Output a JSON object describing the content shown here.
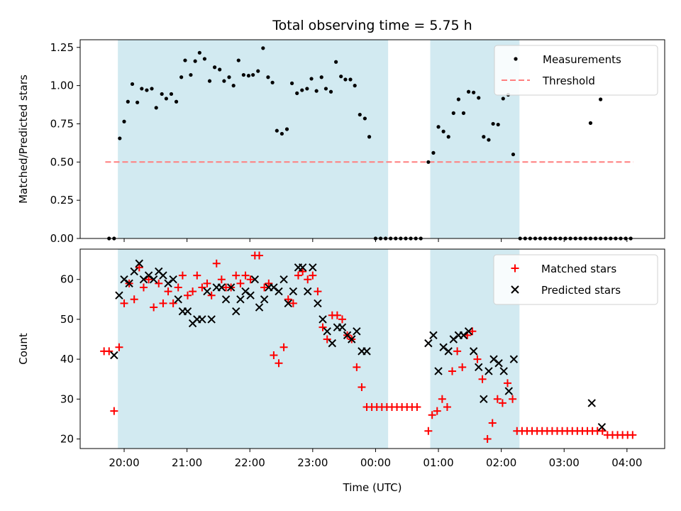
{
  "chart_data": {
    "type": "scatter",
    "title": "Total observing time = 5.75 h",
    "xlabel": "Time (UTC)",
    "xticks": [
      "20:00",
      "21:00",
      "22:00",
      "23:00",
      "00:00",
      "01:00",
      "02:00",
      "03:00",
      "04:00"
    ],
    "xlim_hours": [
      19.3,
      28.6
    ],
    "observing_windows_hours": [
      [
        19.9,
        24.2
      ],
      [
        24.87,
        26.29
      ]
    ],
    "colors": {
      "window": "#add8e6",
      "measurement": "#000000",
      "threshold": "#ff7f7f",
      "matched": "#ff0000",
      "predicted": "#000000"
    },
    "panels": [
      {
        "ylabel": "Matched/Predicted stars",
        "ylim": [
          0,
          1.3
        ],
        "yticks": [
          "0.00",
          "0.25",
          "0.50",
          "0.75",
          "1.00",
          "1.25"
        ],
        "legend": {
          "placement": "top-right",
          "measurements_label": "Measurements",
          "threshold_label": "Threshold"
        },
        "threshold": {
          "value": 0.5,
          "x_range_hours": [
            19.7,
            28.1
          ]
        },
        "measurements": [
          [
            19.76,
            0
          ],
          [
            19.84,
            0
          ],
          [
            19.93,
            0.655
          ],
          [
            20.0,
            0.765
          ],
          [
            20.06,
            0.895
          ],
          [
            20.13,
            1.01
          ],
          [
            20.21,
            0.89
          ],
          [
            20.28,
            0.98
          ],
          [
            20.36,
            0.97
          ],
          [
            20.44,
            0.98
          ],
          [
            20.51,
            0.855
          ],
          [
            20.6,
            0.945
          ],
          [
            20.67,
            0.915
          ],
          [
            20.75,
            0.945
          ],
          [
            20.83,
            0.895
          ],
          [
            20.91,
            1.055
          ],
          [
            20.97,
            1.165
          ],
          [
            21.06,
            1.07
          ],
          [
            21.13,
            1.16
          ],
          [
            21.2,
            1.215
          ],
          [
            21.28,
            1.175
          ],
          [
            21.36,
            1.03
          ],
          [
            21.44,
            1.12
          ],
          [
            21.52,
            1.105
          ],
          [
            21.59,
            1.03
          ],
          [
            21.67,
            1.055
          ],
          [
            21.74,
            1.0
          ],
          [
            21.82,
            1.165
          ],
          [
            21.9,
            1.07
          ],
          [
            21.98,
            1.065
          ],
          [
            22.05,
            1.07
          ],
          [
            22.13,
            1.095
          ],
          [
            22.21,
            1.245
          ],
          [
            22.29,
            1.055
          ],
          [
            22.36,
            1.02
          ],
          [
            22.43,
            0.705
          ],
          [
            22.51,
            0.685
          ],
          [
            22.59,
            0.715
          ],
          [
            22.67,
            1.015
          ],
          [
            22.75,
            0.95
          ],
          [
            22.83,
            0.97
          ],
          [
            22.91,
            0.98
          ],
          [
            22.98,
            1.045
          ],
          [
            23.06,
            0.965
          ],
          [
            23.14,
            1.055
          ],
          [
            23.21,
            0.98
          ],
          [
            23.29,
            0.96
          ],
          [
            23.37,
            1.155
          ],
          [
            23.45,
            1.06
          ],
          [
            23.52,
            1.04
          ],
          [
            23.6,
            1.04
          ],
          [
            23.67,
            1.0
          ],
          [
            23.75,
            0.81
          ],
          [
            23.83,
            0.785
          ],
          [
            23.9,
            0.665
          ],
          [
            24.0,
            0
          ],
          [
            24.08,
            0
          ],
          [
            24.16,
            0
          ],
          [
            24.24,
            0
          ],
          [
            24.32,
            0
          ],
          [
            24.4,
            0
          ],
          [
            24.48,
            0
          ],
          [
            24.56,
            0
          ],
          [
            24.64,
            0
          ],
          [
            24.72,
            0
          ],
          [
            24.84,
            0.5
          ],
          [
            24.92,
            0.56
          ],
          [
            25.0,
            0.73
          ],
          [
            25.08,
            0.7
          ],
          [
            25.16,
            0.665
          ],
          [
            25.24,
            0.82
          ],
          [
            25.32,
            0.91
          ],
          [
            25.4,
            0.82
          ],
          [
            25.48,
            0.96
          ],
          [
            25.56,
            0.955
          ],
          [
            25.64,
            0.92
          ],
          [
            25.72,
            0.665
          ],
          [
            25.8,
            0.645
          ],
          [
            25.87,
            0.75
          ],
          [
            25.95,
            0.745
          ],
          [
            26.03,
            0.915
          ],
          [
            26.11,
            0.94
          ],
          [
            26.19,
            0.55
          ],
          [
            26.3,
            0
          ],
          [
            26.38,
            0
          ],
          [
            26.46,
            0
          ],
          [
            26.54,
            0
          ],
          [
            26.62,
            0
          ],
          [
            26.7,
            0
          ],
          [
            26.78,
            0
          ],
          [
            26.86,
            0
          ],
          [
            26.94,
            0
          ],
          [
            27.02,
            0
          ],
          [
            27.1,
            0
          ],
          [
            27.18,
            0
          ],
          [
            27.26,
            0
          ],
          [
            27.34,
            0
          ],
          [
            27.42,
            0
          ],
          [
            27.5,
            0
          ],
          [
            27.58,
            0
          ],
          [
            27.66,
            0
          ],
          [
            27.74,
            0
          ],
          [
            27.82,
            0
          ],
          [
            27.9,
            0
          ],
          [
            27.98,
            0
          ],
          [
            28.06,
            0
          ],
          [
            27.42,
            0.755
          ],
          [
            27.58,
            0.91
          ]
        ]
      },
      {
        "ylabel": "Count",
        "ylim": [
          17.6,
          67.6
        ],
        "yticks": [
          "20",
          "30",
          "40",
          "50",
          "60"
        ],
        "legend": {
          "placement": "top-right",
          "matched_label": "Matched stars",
          "predicted_label": "Predicted stars"
        },
        "matched": [
          [
            19.68,
            42
          ],
          [
            19.76,
            42
          ],
          [
            19.84,
            27
          ],
          [
            19.92,
            43
          ],
          [
            20.0,
            54
          ],
          [
            20.08,
            59
          ],
          [
            20.16,
            55
          ],
          [
            20.24,
            63
          ],
          [
            20.31,
            58
          ],
          [
            20.39,
            60
          ],
          [
            20.47,
            53
          ],
          [
            20.55,
            59
          ],
          [
            20.62,
            54
          ],
          [
            20.7,
            57
          ],
          [
            20.78,
            54
          ],
          [
            20.86,
            58
          ],
          [
            20.93,
            61
          ],
          [
            21.01,
            56
          ],
          [
            21.09,
            57
          ],
          [
            21.16,
            61
          ],
          [
            21.24,
            58
          ],
          [
            21.32,
            59
          ],
          [
            21.39,
            56
          ],
          [
            21.47,
            64
          ],
          [
            21.55,
            60
          ],
          [
            21.62,
            58
          ],
          [
            21.7,
            58
          ],
          [
            21.78,
            61
          ],
          [
            21.85,
            59
          ],
          [
            21.93,
            61
          ],
          [
            22.01,
            60
          ],
          [
            22.08,
            66
          ],
          [
            22.15,
            66
          ],
          [
            22.23,
            58
          ],
          [
            22.3,
            59
          ],
          [
            22.38,
            41
          ],
          [
            22.46,
            39
          ],
          [
            22.54,
            43
          ],
          [
            22.61,
            55
          ],
          [
            22.69,
            54
          ],
          [
            22.77,
            61
          ],
          [
            22.84,
            62
          ],
          [
            22.92,
            60
          ],
          [
            23.0,
            61
          ],
          [
            23.08,
            57
          ],
          [
            23.16,
            48
          ],
          [
            23.23,
            45
          ],
          [
            23.31,
            51
          ],
          [
            23.39,
            51
          ],
          [
            23.47,
            50
          ],
          [
            23.55,
            46
          ],
          [
            23.62,
            45
          ],
          [
            23.7,
            38
          ],
          [
            23.78,
            33
          ],
          [
            23.86,
            28
          ],
          [
            23.94,
            28
          ],
          [
            24.02,
            28
          ],
          [
            24.1,
            28
          ],
          [
            24.18,
            28
          ],
          [
            24.26,
            28
          ],
          [
            24.34,
            28
          ],
          [
            24.42,
            28
          ],
          [
            24.5,
            28
          ],
          [
            24.58,
            28
          ],
          [
            24.66,
            28
          ],
          [
            24.84,
            22
          ],
          [
            24.9,
            26
          ],
          [
            24.98,
            27
          ],
          [
            25.06,
            30
          ],
          [
            25.14,
            28
          ],
          [
            25.22,
            37
          ],
          [
            25.3,
            42
          ],
          [
            25.38,
            38
          ],
          [
            25.46,
            46
          ],
          [
            25.54,
            47
          ],
          [
            25.62,
            40
          ],
          [
            25.7,
            35
          ],
          [
            25.78,
            20
          ],
          [
            25.86,
            24
          ],
          [
            25.94,
            30
          ],
          [
            26.02,
            29
          ],
          [
            26.1,
            34
          ],
          [
            26.18,
            30
          ],
          [
            26.25,
            22
          ],
          [
            26.33,
            22
          ],
          [
            26.41,
            22
          ],
          [
            26.49,
            22
          ],
          [
            26.57,
            22
          ],
          [
            26.65,
            22
          ],
          [
            26.73,
            22
          ],
          [
            26.81,
            22
          ],
          [
            26.89,
            22
          ],
          [
            26.97,
            22
          ],
          [
            27.05,
            22
          ],
          [
            27.13,
            22
          ],
          [
            27.21,
            22
          ],
          [
            27.29,
            22
          ],
          [
            27.37,
            22
          ],
          [
            27.45,
            22
          ],
          [
            27.53,
            22
          ],
          [
            27.61,
            22
          ],
          [
            27.69,
            21
          ],
          [
            27.77,
            21
          ],
          [
            27.85,
            21
          ],
          [
            27.93,
            21
          ],
          [
            28.01,
            21
          ],
          [
            28.09,
            21
          ]
        ],
        "predicted": [
          [
            19.84,
            41
          ],
          [
            19.92,
            56
          ],
          [
            20.0,
            60
          ],
          [
            20.08,
            59
          ],
          [
            20.16,
            62
          ],
          [
            20.24,
            64
          ],
          [
            20.31,
            60
          ],
          [
            20.39,
            61
          ],
          [
            20.47,
            60
          ],
          [
            20.55,
            62
          ],
          [
            20.62,
            61
          ],
          [
            20.7,
            59
          ],
          [
            20.78,
            60
          ],
          [
            20.86,
            55
          ],
          [
            20.93,
            52
          ],
          [
            21.01,
            52
          ],
          [
            21.09,
            49
          ],
          [
            21.16,
            50
          ],
          [
            21.24,
            50
          ],
          [
            21.32,
            57
          ],
          [
            21.39,
            50
          ],
          [
            21.47,
            58
          ],
          [
            21.55,
            58
          ],
          [
            21.62,
            55
          ],
          [
            21.7,
            58
          ],
          [
            21.78,
            52
          ],
          [
            21.85,
            55
          ],
          [
            21.93,
            57
          ],
          [
            22.01,
            56
          ],
          [
            22.08,
            60
          ],
          [
            22.15,
            53
          ],
          [
            22.23,
            55
          ],
          [
            22.3,
            58
          ],
          [
            22.38,
            58
          ],
          [
            22.46,
            57
          ],
          [
            22.54,
            60
          ],
          [
            22.61,
            54
          ],
          [
            22.69,
            57
          ],
          [
            22.77,
            63
          ],
          [
            22.84,
            63
          ],
          [
            22.92,
            57
          ],
          [
            23.0,
            63
          ],
          [
            23.08,
            54
          ],
          [
            23.16,
            50
          ],
          [
            23.23,
            47
          ],
          [
            23.31,
            44
          ],
          [
            23.39,
            48
          ],
          [
            23.47,
            48
          ],
          [
            23.55,
            46
          ],
          [
            23.62,
            45
          ],
          [
            23.7,
            47
          ],
          [
            23.78,
            42
          ],
          [
            23.86,
            42
          ],
          [
            24.84,
            44
          ],
          [
            24.92,
            46
          ],
          [
            25.0,
            37
          ],
          [
            25.08,
            43
          ],
          [
            25.16,
            42
          ],
          [
            25.24,
            45
          ],
          [
            25.32,
            46
          ],
          [
            25.4,
            46
          ],
          [
            25.48,
            47
          ],
          [
            25.56,
            42
          ],
          [
            25.64,
            38
          ],
          [
            25.72,
            30
          ],
          [
            25.8,
            37
          ],
          [
            25.88,
            40
          ],
          [
            25.96,
            39
          ],
          [
            26.04,
            37
          ],
          [
            26.12,
            32
          ],
          [
            26.2,
            40
          ],
          [
            27.44,
            29
          ],
          [
            27.6,
            23
          ]
        ]
      }
    ]
  }
}
